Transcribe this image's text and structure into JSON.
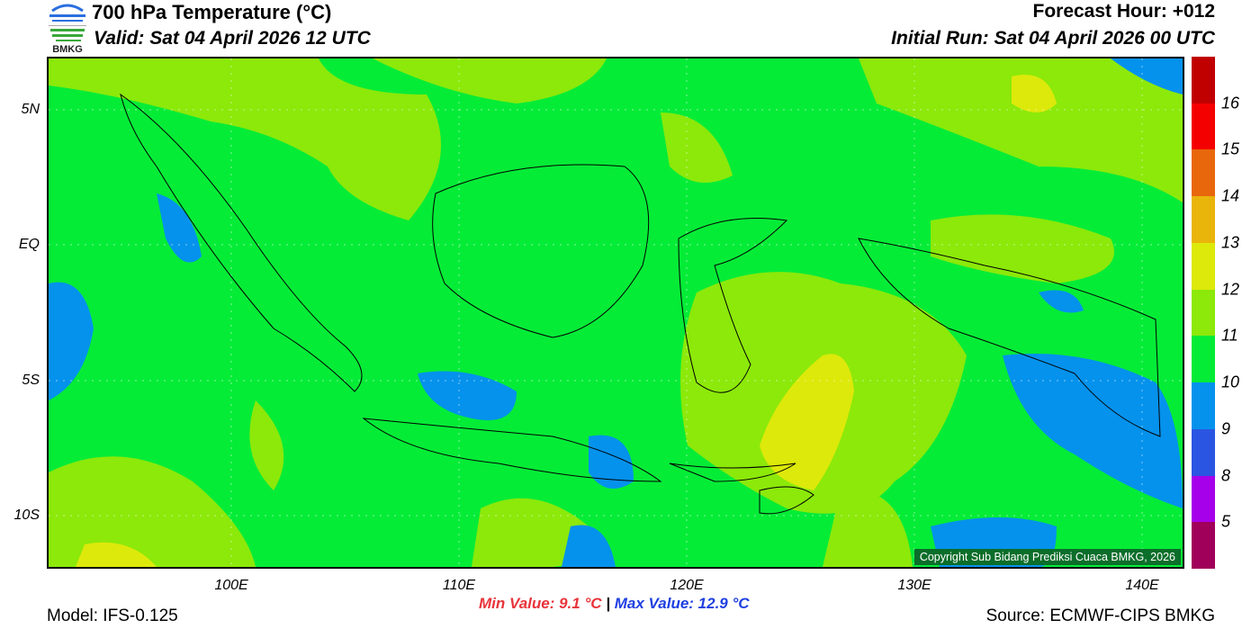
{
  "header": {
    "title": "700 hPa Temperature (°C)",
    "valid": "Valid: Sat 04 April 2026 12 UTC",
    "forecast_hour": "Forecast Hour: +012",
    "initial_run": "Initial Run: Sat 04 April 2026 00 UTC",
    "logo_text": "BMKG"
  },
  "map": {
    "lon_labels": [
      "100E",
      "110E",
      "120E",
      "130E",
      "140E"
    ],
    "lat_labels": [
      "5N",
      "EQ",
      "5S",
      "10S"
    ],
    "copyright": "Copyright Sub Bidang Prediksi Cuaca BMKG, 2026"
  },
  "colorbar": {
    "labels": [
      "16",
      "15",
      "14",
      "13",
      "12",
      "11",
      "10",
      "9",
      "8",
      "5"
    ],
    "colors": [
      "#c00000",
      "#f50000",
      "#e8670d",
      "#e9b50b",
      "#dde90a",
      "#8ce90a",
      "#05ec37",
      "#0592ec",
      "#2a55e2",
      "#a600ea",
      "#a0005a"
    ]
  },
  "footer": {
    "model": "Model: IFS-0.125",
    "min_value": "Min Value: 9.1 °C",
    "separator": "|",
    "max_value": "Max Value: 12.9 °C",
    "source": "Source: ECMWF-CIPS BMKG"
  }
}
